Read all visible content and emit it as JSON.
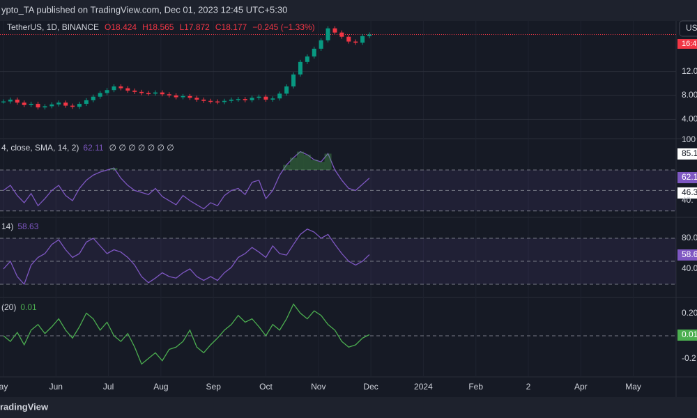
{
  "header": {
    "title": "ypto_TA published on TradingView.com, Dec 01, 2023 12:45 UTC+5:30"
  },
  "symbol_button": "US",
  "price_panel": {
    "symbol": "TetherUS, 1D, BINANCE",
    "open": "O18.424",
    "high": "H18.565",
    "low": "L17.872",
    "close": "C18.177",
    "change": "−0.245 (−1.33%)",
    "tag": "16:4",
    "ticks": [
      {
        "value": 4,
        "label": "4.00"
      },
      {
        "value": 8,
        "label": "8.00"
      },
      {
        "value": 12,
        "label": "12.00"
      }
    ],
    "closes": [
      7.0,
      7.3,
      6.8,
      6.4,
      6.6,
      6.0,
      6.2,
      6.5,
      6.8,
      6.3,
      6.1,
      6.6,
      7.2,
      7.8,
      8.4,
      8.9,
      9.5,
      9.2,
      8.8,
      8.6,
      8.4,
      8.3,
      8.5,
      8.2,
      8.0,
      7.7,
      7.9,
      7.6,
      7.3,
      7.1,
      7.0,
      6.9,
      7.1,
      7.3,
      7.4,
      7.2,
      7.6,
      7.8,
      7.3,
      7.5,
      8.3,
      9.5,
      11.5,
      13.6,
      14.5,
      15.8,
      17.2,
      19.2,
      18.5,
      17.8,
      17.0,
      16.8,
      17.9,
      18.177
    ]
  },
  "rsi_panel": {
    "legend": "4, close, SMA, 14, 2)",
    "value": "62.11",
    "flags": "∅ ∅ ∅ ∅ ∅ ∅ ∅",
    "scale": [
      "100",
      "85.1",
      "62.1",
      "46.3",
      "40."
    ],
    "values": [
      50,
      55,
      45,
      38,
      47,
      35,
      42,
      50,
      55,
      45,
      40,
      52,
      60,
      65,
      68,
      70,
      72,
      62,
      55,
      50,
      48,
      46,
      52,
      44,
      40,
      36,
      45,
      40,
      36,
      32,
      38,
      35,
      45,
      50,
      52,
      46,
      58,
      60,
      42,
      50,
      65,
      75,
      82,
      88,
      85,
      80,
      78,
      86,
      70,
      60,
      52,
      50,
      56,
      62.11
    ]
  },
  "osc_panel": {
    "legend": "14)",
    "value": "58.63",
    "scale": [
      "80.0",
      "58.6",
      "40.0"
    ],
    "values": [
      40,
      50,
      30,
      20,
      45,
      55,
      60,
      72,
      78,
      65,
      55,
      60,
      75,
      80,
      70,
      60,
      65,
      62,
      55,
      45,
      30,
      22,
      28,
      35,
      30,
      28,
      35,
      40,
      30,
      25,
      30,
      25,
      35,
      42,
      55,
      60,
      68,
      62,
      55,
      70,
      60,
      58,
      72,
      85,
      92,
      88,
      80,
      85,
      72,
      60,
      50,
      45,
      50,
      58.63
    ]
  },
  "cmf_panel": {
    "legend": "(20)",
    "value": "0.01",
    "scale": [
      "0.20",
      "0.01",
      "-0.2"
    ],
    "values": [
      0,
      -0.05,
      0.03,
      -0.08,
      0.05,
      0.1,
      0.02,
      0.08,
      0.15,
      0.05,
      -0.02,
      0.08,
      0.2,
      0.15,
      0.05,
      0.12,
      0.0,
      -0.05,
      0.02,
      -0.1,
      -0.25,
      -0.2,
      -0.15,
      -0.22,
      -0.12,
      -0.1,
      -0.05,
      0.05,
      -0.1,
      -0.15,
      -0.08,
      -0.02,
      0.05,
      0.1,
      0.18,
      0.12,
      0.15,
      0.08,
      0.0,
      0.1,
      0.05,
      0.15,
      0.28,
      0.2,
      0.15,
      0.22,
      0.18,
      0.1,
      0.05,
      -0.05,
      -0.1,
      -0.08,
      -0.02,
      0.01
    ]
  },
  "x_axis": [
    "ay",
    "Jun",
    "Jul",
    "Aug",
    "Sep",
    "Oct",
    "Nov",
    "Dec",
    "2024",
    "Feb",
    "2",
    "Apr",
    "May"
  ],
  "footer": "radingView"
}
